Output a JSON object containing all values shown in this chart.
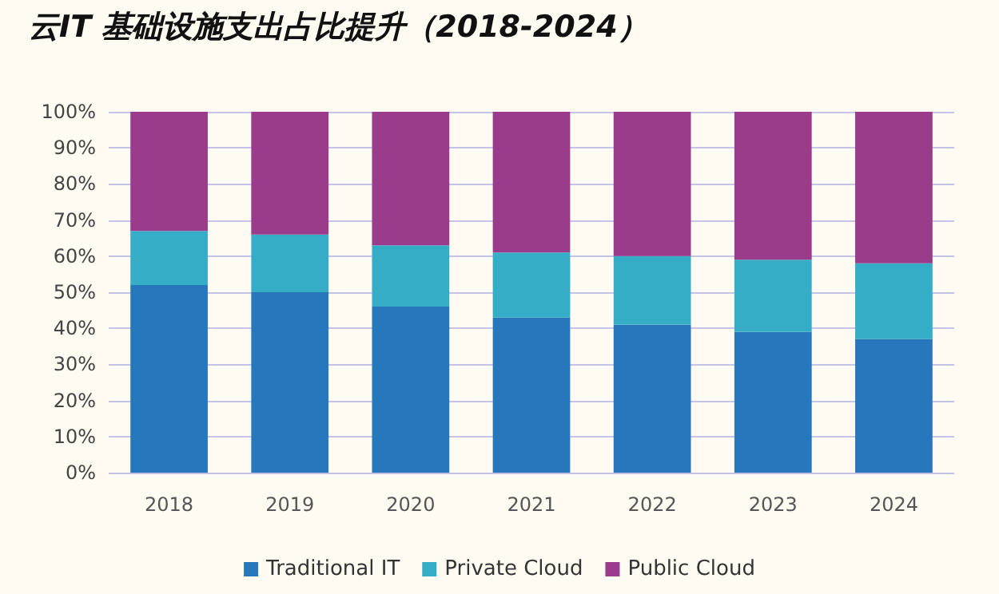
{
  "chart_data": {
    "type": "bar",
    "title": "云IT 基础设施支出占比提升（2018-2024）",
    "stacked": true,
    "categories": [
      "2018",
      "2019",
      "2020",
      "2021",
      "2022",
      "2023",
      "2024"
    ],
    "series": [
      {
        "name": "Traditional IT",
        "color": "#2677bc",
        "values": [
          52,
          50,
          46,
          43,
          41,
          39,
          37
        ]
      },
      {
        "name": "Private Cloud",
        "color": "#36adc6",
        "values": [
          15,
          16,
          17,
          18,
          19,
          20,
          21
        ]
      },
      {
        "name": "Public Cloud",
        "color": "#9b3b8c",
        "values": [
          33,
          34,
          37,
          39,
          40,
          41,
          42
        ]
      }
    ],
    "ylim": [
      0,
      100
    ],
    "yticks": [
      {
        "value": 0,
        "label": "0%"
      },
      {
        "value": 10,
        "label": "10%"
      },
      {
        "value": 20,
        "label": "20%"
      },
      {
        "value": 30,
        "label": "30%"
      },
      {
        "value": 40,
        "label": "40%"
      },
      {
        "value": 50,
        "label": "50%"
      },
      {
        "value": 60,
        "label": "60%"
      },
      {
        "value": 70,
        "label": "70%"
      },
      {
        "value": 80,
        "label": "80%"
      },
      {
        "value": 90,
        "label": "90%"
      },
      {
        "value": 100,
        "label": "100%"
      }
    ],
    "grid": "y",
    "legend": "bottom"
  }
}
